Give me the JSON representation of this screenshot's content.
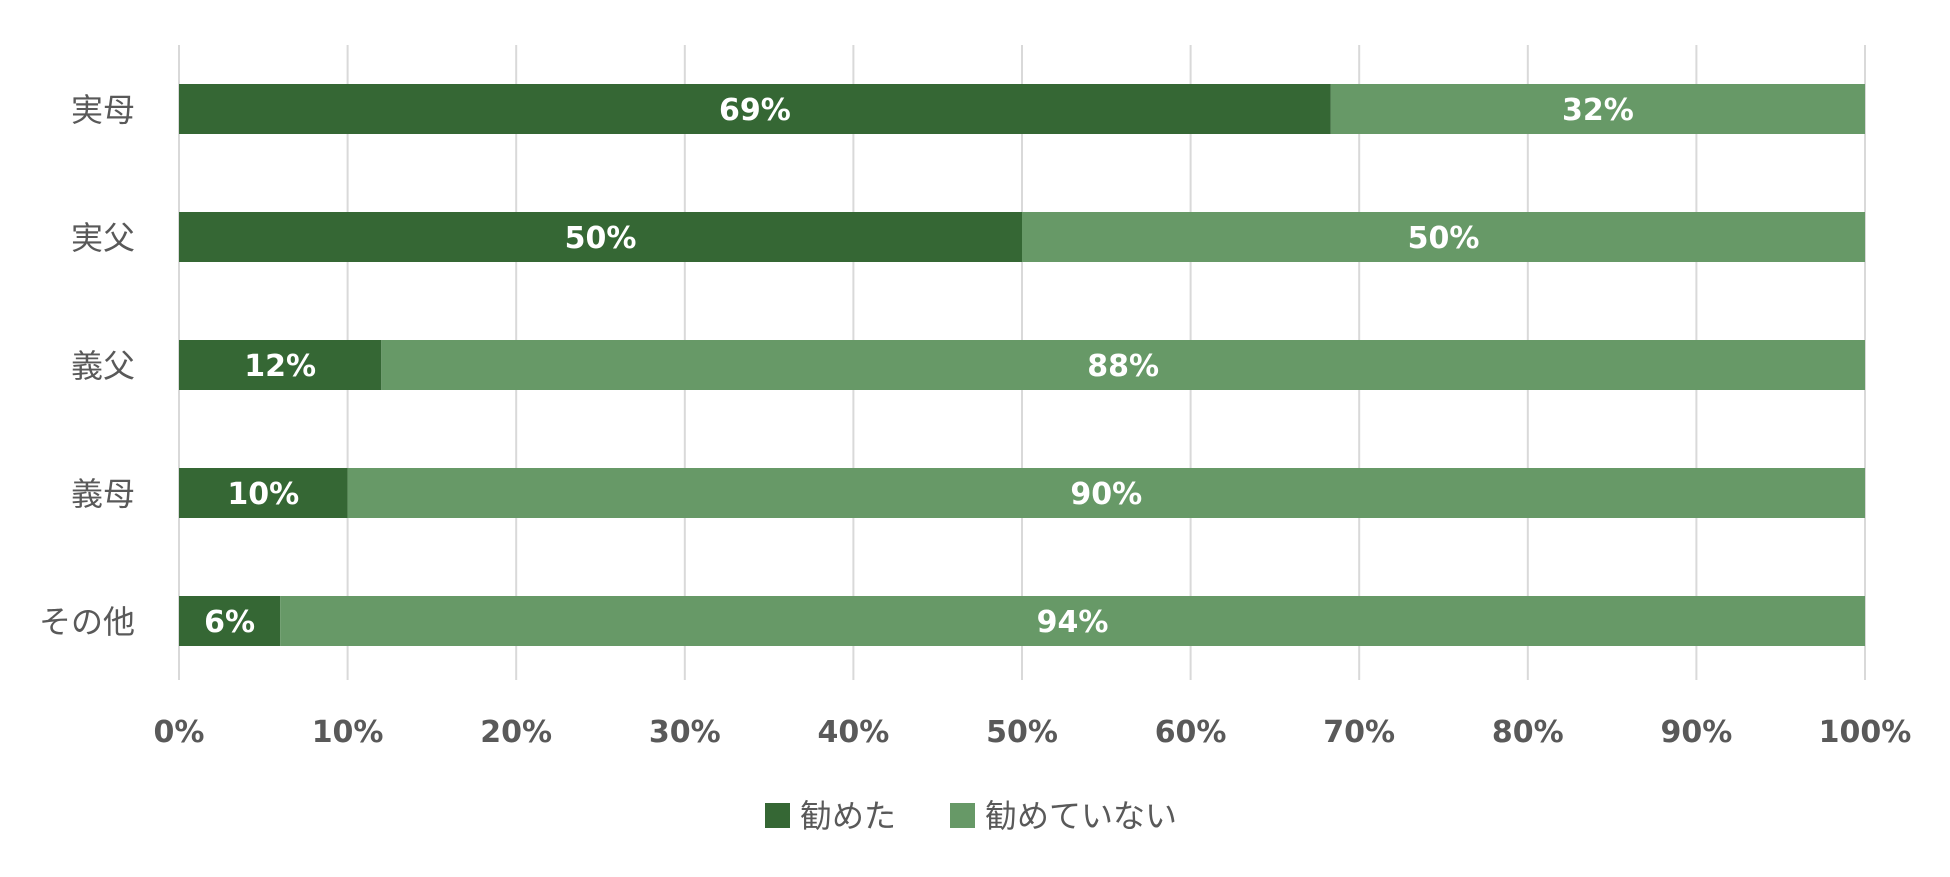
{
  "chart_data": {
    "type": "bar",
    "orientation": "horizontal",
    "stacked": true,
    "categories": [
      "実母",
      "実父",
      "義父",
      "義母",
      "その他"
    ],
    "series": [
      {
        "name": "勧めた",
        "values": [
          69,
          50,
          12,
          10,
          6
        ],
        "labels": [
          "69%",
          "50%",
          "12%",
          "10%",
          "6%"
        ],
        "color": "#356734"
      },
      {
        "name": "勧めていない",
        "values": [
          32,
          50,
          88,
          90,
          94
        ],
        "labels": [
          "32%",
          "50%",
          "88%",
          "90%",
          "94%"
        ],
        "color": "#679967"
      }
    ],
    "x_ticks": [
      "0%",
      "10%",
      "20%",
      "30%",
      "40%",
      "50%",
      "60%",
      "70%",
      "80%",
      "90%",
      "100%"
    ],
    "xlim": [
      0,
      100
    ],
    "grid": true,
    "legend_position": "bottom",
    "title": "",
    "xlabel": "",
    "ylabel": ""
  }
}
